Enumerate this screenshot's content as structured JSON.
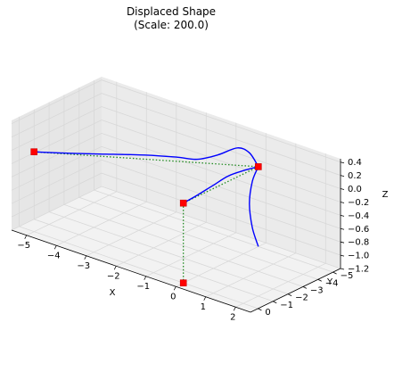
{
  "chart_data": {
    "type": "line",
    "projection": "3d",
    "title_lines": [
      "Displaced Shape",
      "(Scale: 200.0)"
    ],
    "xlabel": "X",
    "ylabel": "Y",
    "zlabel": "Z",
    "xlim": [
      -5.5,
      2.5
    ],
    "ylim": [
      -5.5,
      0.5
    ],
    "zlim": [
      -1.2,
      0.45
    ],
    "x_ticks": [
      -5,
      -4,
      -3,
      -2,
      -1,
      0,
      1,
      2
    ],
    "x_tick_labels": [
      "−5",
      "−4",
      "−3",
      "−2",
      "−1",
      "0",
      "1",
      "2"
    ],
    "y_ticks": [
      0,
      -1,
      -2,
      -3,
      -4,
      -5
    ],
    "y_tick_labels": [
      "0",
      "−1",
      "−2",
      "−3",
      "−4",
      "−5"
    ],
    "z_ticks": [
      0.4,
      0.2,
      0.0,
      -0.2,
      -0.4,
      -0.6,
      -0.8,
      -1.0,
      -1.2
    ],
    "z_tick_labels": [
      "0.4",
      "0.2",
      "0.0",
      "−0.2",
      "−0.4",
      "−0.6",
      "−0.8",
      "−1.0",
      "−1.2"
    ],
    "grid": true,
    "pane_color": "#f2f2f2",
    "grid_color": "#d8d8d8",
    "nodes": [
      {
        "x": -5.0,
        "y": 0.0,
        "z": 0.0
      },
      {
        "x": 0.0,
        "y": -5.0,
        "z": 0.0
      },
      {
        "x": 0.0,
        "y": 0.0,
        "z": 0.0
      },
      {
        "x": 0.0,
        "y": 0.0,
        "z": -1.2
      }
    ],
    "original_segments": [
      [
        0,
        1
      ],
      [
        1,
        2
      ],
      [
        2,
        3
      ]
    ],
    "displaced_curves": [
      {
        "points": [
          [
            -5,
            0,
            0
          ],
          [
            -4.3,
            -0.8,
            0
          ],
          [
            -3.5,
            -1.8,
            0
          ],
          [
            -2.7,
            -2.8,
            0
          ],
          [
            -2.0,
            -3.5,
            0
          ],
          [
            -1.5,
            -3.9,
            0
          ],
          [
            -1.0,
            -4.3,
            0.1
          ],
          [
            -0.5,
            -4.6,
            0.25
          ],
          [
            -0.2,
            -4.8,
            0.2
          ],
          [
            0,
            -5,
            0
          ]
        ]
      },
      {
        "points": [
          [
            0,
            -5,
            0
          ],
          [
            0,
            -4,
            0.05
          ],
          [
            0,
            -3,
            0.08
          ],
          [
            0,
            -2,
            0.05
          ],
          [
            0,
            -1,
            0.02
          ],
          [
            0,
            0,
            0
          ]
        ]
      },
      {
        "points": [
          [
            0,
            -5,
            0
          ],
          [
            -0.2,
            -5,
            -0.25
          ],
          [
            -0.3,
            -5,
            -0.6
          ],
          [
            -0.2,
            -5,
            -0.95
          ],
          [
            0,
            -5,
            -1.2
          ]
        ]
      }
    ],
    "series_style": {
      "original": {
        "color": "#228b22",
        "style": "dotted"
      },
      "displaced": {
        "color": "#0000ff",
        "style": "solid"
      },
      "nodes": {
        "color": "#ff0000",
        "marker": "square"
      }
    }
  }
}
